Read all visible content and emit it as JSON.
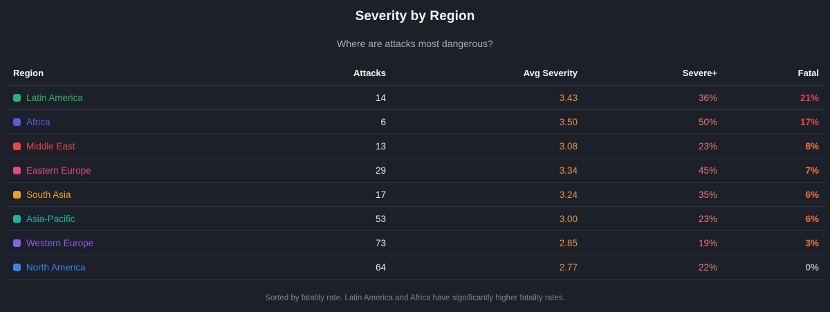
{
  "chart_data": {
    "type": "table",
    "title": "Severity by Region",
    "subtitle": "Where are attacks most dangerous?",
    "columns": [
      "Region",
      "Attacks",
      "Avg Severity",
      "Severe+",
      "Fatal"
    ],
    "rows": [
      {
        "region": "Latin America",
        "color": "#22b573",
        "attacks": "14",
        "avg_severity": "3.43",
        "severe_plus": "36%",
        "fatal": "21%",
        "fatal_color": "#ef4444"
      },
      {
        "region": "Africa",
        "color": "#5b5ce6",
        "attacks": "6",
        "avg_severity": "3.50",
        "severe_plus": "50%",
        "fatal": "17%",
        "fatal_color": "#ef4444"
      },
      {
        "region": "Middle East",
        "color": "#ef4444",
        "attacks": "13",
        "avg_severity": "3.08",
        "severe_plus": "23%",
        "fatal": "8%",
        "fatal_color": "#f4713b"
      },
      {
        "region": "Eastern Europe",
        "color": "#e9468e",
        "attacks": "29",
        "avg_severity": "3.34",
        "severe_plus": "45%",
        "fatal": "7%",
        "fatal_color": "#f4713b"
      },
      {
        "region": "South Asia",
        "color": "#f59e1b",
        "attacks": "17",
        "avg_severity": "3.24",
        "severe_plus": "35%",
        "fatal": "6%",
        "fatal_color": "#f4713b"
      },
      {
        "region": "Asia-Pacific",
        "color": "#14b8a6",
        "attacks": "53",
        "avg_severity": "3.00",
        "severe_plus": "23%",
        "fatal": "6%",
        "fatal_color": "#f4713b"
      },
      {
        "region": "Western Europe",
        "color": "#8b5cf6",
        "attacks": "73",
        "avg_severity": "2.85",
        "severe_plus": "19%",
        "fatal": "3%",
        "fatal_color": "#f4713b"
      },
      {
        "region": "North America",
        "color": "#3b82f6",
        "attacks": "64",
        "avg_severity": "2.77",
        "severe_plus": "22%",
        "fatal": "0%",
        "fatal_color": "#a9aeb8"
      }
    ],
    "footnote": "Sorted by fatality rate. Latin America and Africa have significantly higher fatality rates."
  }
}
